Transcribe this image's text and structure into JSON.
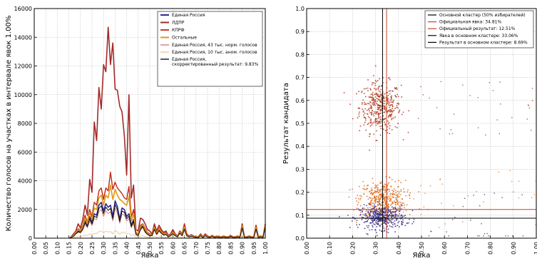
{
  "chart_data": [
    {
      "type": "line",
      "xlabel": "Явка",
      "ylabel": "Количество голосов на участках в интервале явок 1.00%",
      "xlim": [
        0,
        1
      ],
      "ylim": [
        0,
        16000
      ],
      "x_ticks": [
        "0.00",
        "0.05",
        "0.10",
        "0.15",
        "0.20",
        "0.25",
        "0.30",
        "0.35",
        "0.40",
        "0.45",
        "0.50",
        "0.55",
        "0.60",
        "0.65",
        "0.70",
        "0.75",
        "0.80",
        "0.85",
        "0.90",
        "0.95",
        "1.00"
      ],
      "y_ticks": [
        "0",
        "2000",
        "4000",
        "6000",
        "8000",
        "10000",
        "12000",
        "14000",
        "16000"
      ],
      "grid": true,
      "legend_position": "top-right",
      "x": [
        0.15,
        0.16,
        0.17,
        0.18,
        0.19,
        0.2,
        0.21,
        0.22,
        0.23,
        0.24,
        0.25,
        0.26,
        0.27,
        0.28,
        0.29,
        0.3,
        0.31,
        0.32,
        0.33,
        0.34,
        0.35,
        0.36,
        0.37,
        0.38,
        0.39,
        0.4,
        0.41,
        0.42,
        0.43,
        0.44,
        0.45,
        0.46,
        0.47,
        0.48,
        0.49,
        0.5,
        0.51,
        0.52,
        0.53,
        0.54,
        0.55,
        0.56,
        0.57,
        0.58,
        0.59,
        0.6,
        0.61,
        0.62,
        0.63,
        0.64,
        0.65,
        0.66,
        0.67,
        0.68,
        0.69,
        0.7,
        0.71,
        0.72,
        0.73,
        0.74,
        0.75,
        0.76,
        0.77,
        0.78,
        0.79,
        0.8,
        0.81,
        0.82,
        0.83,
        0.84,
        0.85,
        0.86,
        0.87,
        0.88,
        0.89,
        0.9,
        0.91,
        0.92,
        0.93,
        0.94,
        0.95,
        0.96,
        0.97,
        0.98,
        0.99,
        1.0
      ],
      "series": [
        {
          "name": "Единая Россия",
          "color": "#2b2a8a",
          "width": 1.6,
          "values": [
            0,
            50,
            150,
            350,
            500,
            450,
            700,
            1200,
            900,
            1500,
            1100,
            1700,
            1600,
            2300,
            2500,
            1900,
            2400,
            2150,
            2300,
            1500,
            2600,
            2200,
            1300,
            2100,
            2000,
            1500,
            1700,
            900,
            1300,
            300,
            200,
            700,
            900,
            500,
            300,
            200,
            200,
            700,
            300,
            600,
            400,
            250,
            300,
            100,
            200,
            350,
            200,
            100,
            400,
            200,
            700,
            200,
            100,
            150,
            100,
            50,
            50,
            200,
            50,
            200,
            100,
            50,
            150,
            50,
            100,
            50,
            50,
            100,
            50,
            50,
            150,
            50,
            50,
            100,
            50,
            800,
            50,
            50,
            100,
            50,
            50,
            700,
            50,
            100,
            50,
            900
          ]
        },
        {
          "name": "ЛДПР",
          "color": "#a42a2a",
          "width": 1.6,
          "values": [
            0,
            100,
            300,
            500,
            1000,
            700,
            1300,
            2300,
            1600,
            4100,
            3200,
            8100,
            6800,
            10500,
            9000,
            12100,
            11600,
            14700,
            12100,
            13600,
            10400,
            10300,
            9200,
            8800,
            7100,
            4400,
            10000,
            2800,
            3700,
            600,
            500,
            1400,
            1300,
            1000,
            600,
            500,
            300,
            1000,
            500,
            900,
            600,
            400,
            500,
            200,
            300,
            600,
            300,
            150,
            500,
            300,
            1000,
            300,
            150,
            250,
            150,
            100,
            100,
            300,
            100,
            300,
            150,
            100,
            200,
            100,
            150,
            100,
            100,
            150,
            100,
            100,
            200,
            100,
            100,
            150,
            100,
            1000,
            100,
            100,
            150,
            100,
            100,
            900,
            100,
            150,
            100,
            1000
          ]
        },
        {
          "name": "КПРФ",
          "color": "#c12a10",
          "width": 1.4,
          "values": [
            0,
            70,
            200,
            450,
            650,
            550,
            900,
            1600,
            1100,
            2000,
            1500,
            2500,
            2300,
            3300,
            3500,
            2700,
            3500,
            3300,
            4600,
            3400,
            3900,
            3500,
            3300,
            3100,
            2800,
            2700,
            3600,
            1500,
            2000,
            400,
            300,
            900,
            1000,
            700,
            400,
            300,
            250,
            800,
            400,
            700,
            500,
            300,
            400,
            150,
            250,
            450,
            250,
            120,
            450,
            250,
            850,
            250,
            120,
            200,
            120,
            80,
            80,
            250,
            80,
            250,
            120,
            80,
            180,
            80,
            120,
            80,
            80,
            120,
            80,
            80,
            180,
            80,
            80,
            120,
            80,
            900,
            80,
            80,
            120,
            80,
            80,
            800,
            80,
            120,
            80,
            950
          ]
        },
        {
          "name": "Остальные",
          "color": "#e09a14",
          "width": 1.6,
          "values": [
            0,
            60,
            180,
            400,
            600,
            500,
            800,
            1400,
            1000,
            1800,
            1300,
            2100,
            2000,
            2800,
            3000,
            2300,
            3000,
            2800,
            3700,
            2700,
            3400,
            3000,
            2700,
            2600,
            2400,
            2300,
            2900,
            1200,
            1700,
            350,
            250,
            800,
            950,
            600,
            350,
            250,
            220,
            750,
            350,
            650,
            450,
            280,
            350,
            120,
            220,
            400,
            220,
            110,
            420,
            220,
            780,
            220,
            110,
            180,
            110,
            70,
            70,
            220,
            70,
            220,
            110,
            70,
            160,
            70,
            110,
            70,
            70,
            110,
            70,
            70,
            160,
            70,
            70,
            110,
            70,
            850,
            70,
            70,
            110,
            70,
            70,
            750,
            70,
            110,
            70,
            920
          ]
        },
        {
          "name": "Единая Россия, 43 тыс. норм. голосов",
          "color": "#d1817a",
          "width": 1.0,
          "values": [
            0,
            40,
            120,
            280,
            400,
            360,
            560,
            960,
            720,
            1200,
            880,
            1360,
            1280,
            1840,
            2000,
            1520,
            1920,
            1720,
            1840,
            1200,
            2080,
            1760,
            1040,
            1680,
            1600,
            1200,
            1360,
            720,
            1040,
            240,
            160,
            560,
            720,
            400,
            240,
            160,
            160,
            560,
            240,
            480,
            320,
            200,
            240,
            80,
            160,
            280,
            160,
            80,
            320,
            160,
            560,
            160,
            80,
            120,
            80,
            40,
            40,
            160,
            40,
            160,
            80,
            40,
            120,
            40,
            80,
            40,
            40,
            80,
            40,
            40,
            120,
            40,
            40,
            80,
            40,
            640,
            40,
            40,
            80,
            40,
            40,
            560,
            40,
            80,
            40,
            720
          ]
        },
        {
          "name": "Единая Россия, 10 тыс. аном. голосов",
          "color": "#f2c896",
          "width": 1.0,
          "values": [
            0,
            10,
            30,
            70,
            100,
            90,
            140,
            240,
            180,
            300,
            220,
            340,
            320,
            460,
            500,
            380,
            480,
            430,
            460,
            300,
            520,
            440,
            260,
            420,
            400,
            300,
            340,
            180,
            260,
            60,
            40,
            140,
            180,
            100,
            60,
            40,
            40,
            140,
            60,
            120,
            80,
            50,
            60,
            20,
            40,
            70,
            40,
            20,
            80,
            40,
            140,
            40,
            20,
            30,
            20,
            10,
            10,
            40,
            10,
            40,
            20,
            10,
            30,
            10,
            20,
            10,
            10,
            20,
            10,
            10,
            30,
            10,
            10,
            20,
            10,
            160,
            10,
            10,
            20,
            10,
            10,
            140,
            10,
            20,
            10,
            180
          ]
        },
        {
          "name": "Единая Россия, скорректированный результат: 9.83%",
          "color": "#111111",
          "width": 1.0,
          "values": [
            0,
            45,
            135,
            315,
            450,
            405,
            630,
            1080,
            810,
            1350,
            990,
            1530,
            1440,
            2070,
            2250,
            1710,
            2160,
            1935,
            2070,
            1350,
            2340,
            1980,
            1170,
            1890,
            1800,
            1350,
            1530,
            810,
            1170,
            270,
            180,
            630,
            810,
            450,
            270,
            180,
            180,
            630,
            270,
            540,
            360,
            225,
            270,
            90,
            180,
            315,
            180,
            90,
            360,
            180,
            630,
            180,
            90,
            135,
            90,
            45,
            45,
            180,
            45,
            180,
            90,
            45,
            135,
            45,
            90,
            45,
            45,
            90,
            45,
            45,
            135,
            45,
            45,
            90,
            45,
            720,
            45,
            45,
            90,
            45,
            45,
            630,
            45,
            90,
            45,
            810
          ]
        }
      ]
    },
    {
      "type": "scatter",
      "xlabel": "Явка",
      "ylabel": "Результат кандидата",
      "xlim": [
        0,
        1
      ],
      "ylim": [
        0,
        1
      ],
      "x_ticks": [
        "0.00",
        "0.10",
        "0.20",
        "0.30",
        "0.40",
        "0.50",
        "0.60",
        "0.70",
        "0.80",
        "0.90",
        "1.00"
      ],
      "y_ticks": [
        "0.0",
        "0.1",
        "0.2",
        "0.3",
        "0.4",
        "0.5",
        "0.6",
        "0.7",
        "0.8",
        "0.9",
        "1.0"
      ],
      "grid": true,
      "legend_position": "top-right",
      "clusters": [
        {
          "name": "ЛДПР",
          "color": "#b0391c",
          "center": [
            0.32,
            0.57
          ],
          "spread": [
            0.045,
            0.055
          ],
          "count": 420
        },
        {
          "name": "КПРФ",
          "color": "#e0701e",
          "center": [
            0.33,
            0.17
          ],
          "spread": [
            0.05,
            0.04
          ],
          "count": 420
        },
        {
          "name": "Единая Россия",
          "color": "#3b2f86",
          "center": [
            0.33,
            0.09
          ],
          "spread": [
            0.05,
            0.025
          ],
          "count": 420
        }
      ],
      "reference_lines": [
        {
          "name": "Официальная явка: 34.81%",
          "orientation": "vertical",
          "value": 0.3481,
          "color": "#c0462a"
        },
        {
          "name": "Официальный результат: 12.51%",
          "orientation": "horizontal",
          "value": 0.1251,
          "color": "#c0462a"
        },
        {
          "name": "Явка в основном кластере: 33.06%",
          "orientation": "vertical",
          "value": 0.3306,
          "color": "#000000"
        },
        {
          "name": "Результат в основном кластере: 8.69%",
          "orientation": "horizontal",
          "value": 0.0869,
          "color": "#000000"
        }
      ],
      "legend_entries": [
        {
          "label": "Основной кластер (50% избирателей)",
          "color": "#000000"
        },
        {
          "label": "Официальная явка: 34.81%",
          "color": "#c0462a"
        },
        {
          "label": "Официальный результат: 12.51%",
          "color": "#c0462a"
        },
        {
          "label": "Явка в основном кластере: 33.06%",
          "color": "#000000"
        },
        {
          "label": "Результат в основном кластере: 8.69%",
          "color": "#000000"
        }
      ]
    }
  ]
}
